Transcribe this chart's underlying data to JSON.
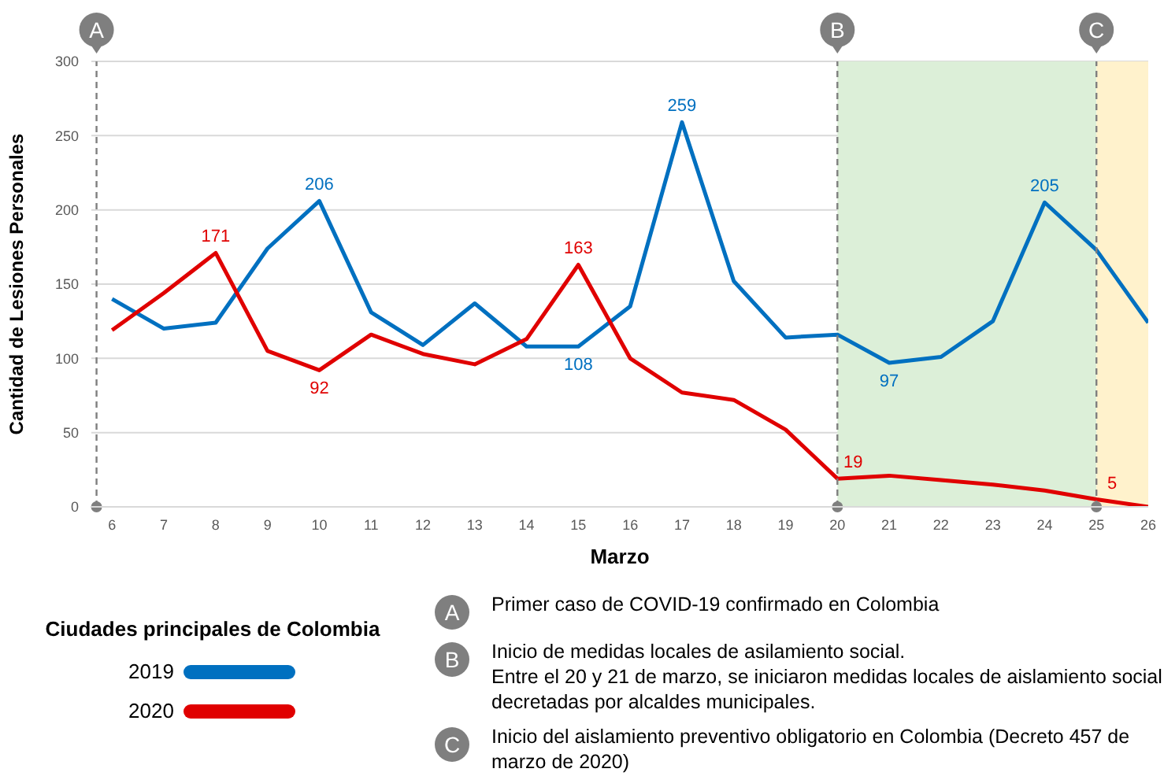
{
  "chart_data": {
    "type": "line",
    "xlabel": "Marzo",
    "ylabel": "Cantidad de Lesiones Personales",
    "x": [
      6,
      7,
      8,
      9,
      10,
      11,
      12,
      13,
      14,
      15,
      16,
      17,
      18,
      19,
      20,
      21,
      22,
      23,
      24,
      25,
      26
    ],
    "xlim": [
      5.6,
      26
    ],
    "xticks": [
      6,
      7,
      8,
      9,
      10,
      11,
      12,
      13,
      14,
      15,
      16,
      17,
      18,
      19,
      20,
      21,
      22,
      23,
      24,
      25,
      26
    ],
    "ylim": [
      0,
      300
    ],
    "yticks": [
      0,
      50,
      100,
      150,
      200,
      250,
      300
    ],
    "grid": "y",
    "marker": "none",
    "line_style": "solid",
    "legend": "bottom left",
    "legend_title": "Ciudades principales de Colombia",
    "series": [
      {
        "name": "2019",
        "color": "#0070c0",
        "values": [
          140,
          120,
          124,
          174,
          206,
          131,
          109,
          137,
          108,
          108,
          135,
          259,
          152,
          114,
          116,
          97,
          101,
          125,
          205,
          173,
          124
        ],
        "value_labels": [
          null,
          null,
          null,
          null,
          "206",
          null,
          null,
          null,
          null,
          "108",
          null,
          "259",
          null,
          null,
          null,
          "97",
          null,
          null,
          "205",
          null,
          null
        ]
      },
      {
        "name": "2020",
        "color": "#e00000",
        "values": [
          119,
          144,
          171,
          105,
          92,
          116,
          103,
          96,
          113,
          163,
          100,
          77,
          72,
          52,
          19,
          21,
          18,
          15,
          11,
          5,
          0
        ],
        "value_labels": [
          null,
          null,
          "171",
          null,
          "92",
          null,
          null,
          null,
          null,
          "163",
          null,
          null,
          null,
          null,
          "19",
          null,
          null,
          null,
          null,
          "5",
          null
        ]
      }
    ],
    "ref_lines": [
      {
        "axis": "x",
        "value": 5.7,
        "label": "A",
        "color": "#7f7f7f",
        "line_style": "dashed"
      },
      {
        "axis": "x",
        "value": 20,
        "label": "B",
        "color": "#7f7f7f",
        "line_style": "dashed"
      },
      {
        "axis": "x",
        "value": 25,
        "label": "C",
        "color": "#7f7f7f",
        "line_style": "dashed"
      }
    ],
    "bands": [
      {
        "axis": "x",
        "from": 20,
        "to": 25,
        "color": "#dcefd8"
      },
      {
        "axis": "x",
        "from": 25,
        "to": 26,
        "color": "#fff2cc"
      }
    ],
    "annotations": [
      "Primer caso de COVID-19 confirmado en Colombia",
      "Inicio de medidas locales de asilamiento social.\nEntre el 20 y 21 de marzo, se iniciaron medidas locales de aislamiento social decretadas por alcaldes municipales.",
      "Inicio del aislamiento preventivo obligatorio en Colombia (Decreto 457 de marzo de 2020)"
    ]
  }
}
